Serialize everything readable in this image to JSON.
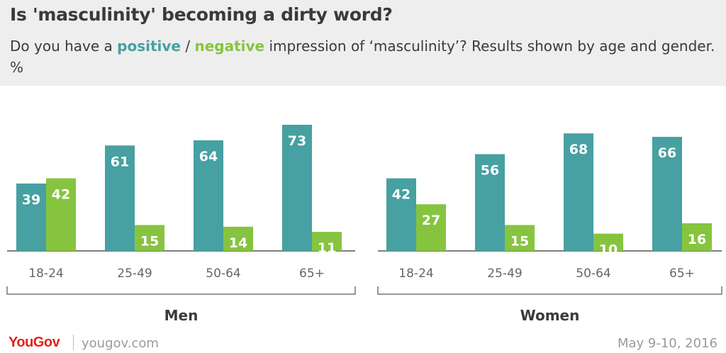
{
  "header": {
    "title": "Is 'masculinity' becoming a dirty word?",
    "subtitle_pre": "Do you have a ",
    "subtitle_positive": "positive",
    "subtitle_sep": " / ",
    "subtitle_negative": "negative",
    "subtitle_post": " impression of ‘masculinity’? Results shown by age and gender. %"
  },
  "colors": {
    "positive": "#47a0a1",
    "negative": "#86c43f"
  },
  "chart_data": [
    {
      "type": "bar",
      "group": "Men",
      "categories": [
        "18-24",
        "25-49",
        "50-64",
        "65+"
      ],
      "series": [
        {
          "name": "positive",
          "values": [
            39,
            61,
            64,
            73
          ]
        },
        {
          "name": "negative",
          "values": [
            42,
            15,
            14,
            11
          ]
        }
      ],
      "ylim": [
        0,
        73
      ]
    },
    {
      "type": "bar",
      "group": "Women",
      "categories": [
        "18-24",
        "25-49",
        "50-64",
        "65+"
      ],
      "series": [
        {
          "name": "positive",
          "values": [
            42,
            56,
            68,
            66
          ]
        },
        {
          "name": "negative",
          "values": [
            27,
            15,
            10,
            16
          ]
        }
      ],
      "ylim": [
        0,
        73
      ]
    }
  ],
  "footer": {
    "logo": "YouGov",
    "site": "yougov.com",
    "date": "May 9-10, 2016"
  }
}
